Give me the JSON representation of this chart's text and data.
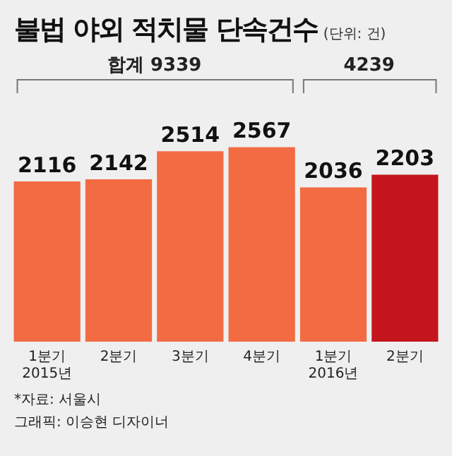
{
  "chart_data": {
    "type": "bar",
    "title": "불법 야외 적치물 단속건수",
    "subtitle": "(단위: 건)",
    "categories": [
      "1분기\n2015년",
      "2분기",
      "3분기",
      "4분기",
      "1분기\n2016년",
      "2분기"
    ],
    "values": [
      2116,
      2142,
      2514,
      2567,
      2036,
      2203
    ],
    "colors": [
      "#f26b43",
      "#f26b43",
      "#f26b43",
      "#f26b43",
      "#f26b43",
      "#c4161c"
    ],
    "data_labels": true,
    "grid": false,
    "legend": false,
    "annotations": [
      "합계 9339",
      "4239",
      "*자료: 서울시",
      "그래픽: 이승현 디자이너"
    ]
  }
}
